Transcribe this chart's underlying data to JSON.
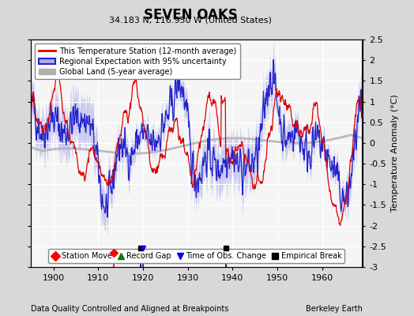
{
  "title": "SEVEN OAKS",
  "subtitle": "34.183 N, 116.950 W (United States)",
  "xlabel_note": "Data Quality Controlled and Aligned at Breakpoints",
  "xlabel_note_right": "Berkeley Earth",
  "ylabel": "Temperature Anomaly (°C)",
  "xlim": [
    1895,
    1969
  ],
  "ylim": [
    -3.0,
    2.5
  ],
  "yticks": [
    -3,
    -2.5,
    -2,
    -1.5,
    -1,
    -0.5,
    0,
    0.5,
    1,
    1.5,
    2,
    2.5
  ],
  "xticks": [
    1900,
    1910,
    1920,
    1930,
    1940,
    1950,
    1960
  ],
  "seed": 42,
  "background_color": "#d8d8d8",
  "plot_bg_color": "#f5f5f5",
  "red_line_color": "#dd0000",
  "blue_line_color": "#2222cc",
  "blue_fill_color": "#aaaaee",
  "gray_line_color": "#b0b0b0",
  "grid_color": "#ffffff",
  "event_markers": {
    "station_move": [
      1913.5
    ],
    "record_gap": [],
    "time_obs_change": [
      1920.0
    ],
    "empirical_break": [
      1919.5,
      1938.5
    ]
  }
}
